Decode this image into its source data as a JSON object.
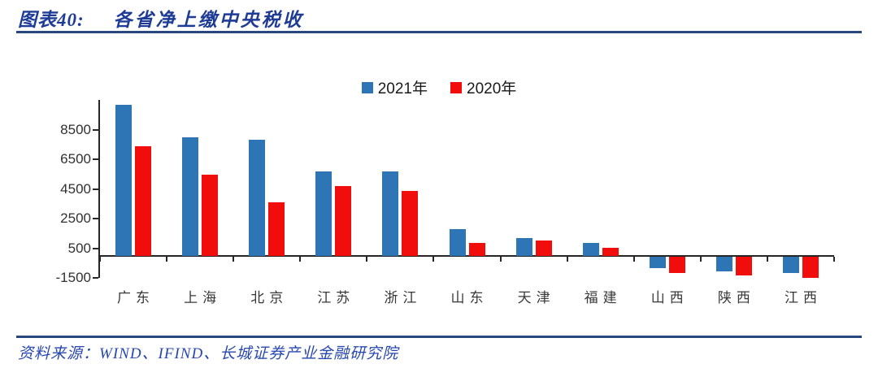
{
  "header": {
    "label": "图表40:",
    "title": "各省净上缴中央税收"
  },
  "footer": {
    "text": "资料来源：WIND、IFIND、长城证券产业金融研究院"
  },
  "colors": {
    "accent_navy": "#1E3C96",
    "rule_navy": "#27477F",
    "series_2021_blue": "#2E75B6",
    "series_2020_red": "#F20D0D",
    "axis": "#262626"
  },
  "chart_data": {
    "type": "bar",
    "title": "各省净上缴中央税收",
    "categories": [
      "广东",
      "上海",
      "北京",
      "江苏",
      "浙江",
      "山东",
      "天津",
      "福建",
      "山西",
      "陕西",
      "江西"
    ],
    "series": [
      {
        "name": "2021年",
        "color": "#2E75B6",
        "values": [
          10200,
          8000,
          7850,
          5700,
          5700,
          1800,
          1200,
          900,
          -750,
          -1000,
          -1100
        ]
      },
      {
        "name": "2020年",
        "color": "#F20D0D",
        "values": [
          7400,
          5500,
          3600,
          4700,
          4400,
          850,
          1050,
          550,
          -1100,
          -1250,
          -1400
        ]
      }
    ],
    "xlabel": "",
    "ylabel": "",
    "yticks": [
      8500,
      6500,
      4500,
      2500,
      500,
      -1500
    ],
    "ylim": [
      -1500,
      10500
    ],
    "grid": false,
    "legend_position": "top-center"
  }
}
